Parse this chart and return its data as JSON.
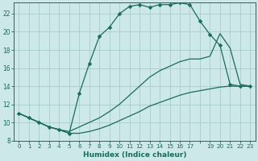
{
  "xlabel": "Humidex (Indice chaleur)",
  "bg_color": "#cce8e8",
  "grid_color": "#aacccc",
  "line_color": "#1a6b5a",
  "marker": "D",
  "marker_size": 2.5,
  "xlim": [
    -0.5,
    23.5
  ],
  "ylim": [
    8,
    23.2
  ],
  "xticks": [
    0,
    1,
    2,
    3,
    4,
    5,
    6,
    7,
    8,
    9,
    10,
    11,
    12,
    13,
    14,
    15,
    16,
    17,
    18,
    19,
    20,
    21,
    22,
    23
  ],
  "yticks": [
    8,
    10,
    12,
    14,
    16,
    18,
    20,
    22
  ],
  "line1_x": [
    0,
    1,
    2,
    3,
    4,
    5,
    6,
    7,
    8,
    9,
    10,
    11,
    12,
    13,
    14,
    15,
    16,
    17,
    18,
    19,
    20,
    21,
    22,
    23
  ],
  "line1_y": [
    11,
    10.5,
    10,
    9.5,
    9.2,
    8.8,
    8.8,
    9.0,
    9.3,
    9.7,
    10.2,
    10.7,
    11.2,
    11.8,
    12.2,
    12.6,
    13.0,
    13.3,
    13.5,
    13.7,
    13.9,
    14.0,
    14.0,
    14.0
  ],
  "line2_x": [
    0,
    1,
    2,
    3,
    4,
    5,
    6,
    7,
    8,
    9,
    10,
    11,
    12,
    13,
    14,
    15,
    16,
    17,
    18,
    19,
    20,
    21,
    22,
    23
  ],
  "line2_y": [
    11,
    10.5,
    10,
    9.5,
    9.2,
    8.8,
    13.2,
    16.5,
    19.5,
    20.5,
    22.0,
    22.8,
    23.0,
    22.7,
    23.0,
    23.0,
    23.2,
    23.0,
    21.2,
    19.7,
    18.5,
    14.2,
    14.0,
    14.0
  ],
  "line3_x": [
    0,
    1,
    2,
    3,
    4,
    5,
    6,
    7,
    8,
    9,
    10,
    11,
    12,
    13,
    14,
    15,
    16,
    17,
    18,
    19,
    20,
    21,
    22,
    23
  ],
  "line3_y": [
    11,
    10.5,
    10,
    9.5,
    9.2,
    9.0,
    9.5,
    10.0,
    10.5,
    11.2,
    12.0,
    13.0,
    14.0,
    15.0,
    15.7,
    16.2,
    16.7,
    17.0,
    17.0,
    17.3,
    19.8,
    18.2,
    14.2,
    14.0
  ]
}
